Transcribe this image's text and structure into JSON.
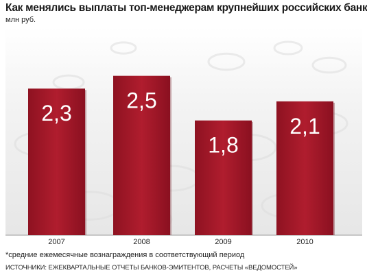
{
  "title": "Как менялись выплаты топ-менеджерам крупнейших российских банков*",
  "unit": "млн руб.",
  "footnote": "*средние ежемесячные вознаграждения в соответствующий период",
  "source": "ИСТОЧНИКИ: ЕЖЕКВАРТАЛЬНЫЕ ОТЧЕТЫ БАНКОВ-ЭМИТЕНТОВ, РАСЧЕТЫ «ВЕДОМОСТЕЙ»",
  "colors": {
    "bar": "#a5182a",
    "bar_highlight": "#c32738",
    "bar_shadow": "#6e0c18",
    "bar_label": "#ffffff",
    "background_texture": "#dcdcdc"
  },
  "chart_data": {
    "type": "bar",
    "categories": [
      "2007",
      "2008",
      "2009",
      "2010"
    ],
    "values": [
      2.3,
      2.5,
      1.8,
      2.1
    ],
    "value_labels": [
      "2,3",
      "2,5",
      "1,8",
      "2,1"
    ],
    "title": "Как менялись выплаты топ-менеджерам крупнейших российских банков*",
    "ylabel": "млн руб.",
    "xlabel": "",
    "ylim": [
      0,
      3.12
    ],
    "grid": false,
    "legend": "none"
  }
}
